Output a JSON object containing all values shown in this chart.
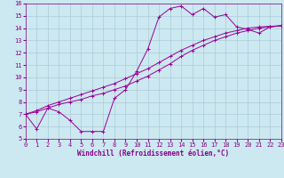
{
  "xlabel": "Windchill (Refroidissement éolien,°C)",
  "bg_color": "#cce8f0",
  "line_color": "#990099",
  "grid_color": "#aaccd8",
  "xmin": 0,
  "xmax": 23,
  "ymin": 5,
  "ymax": 16,
  "xticks": [
    0,
    1,
    2,
    3,
    4,
    5,
    6,
    7,
    8,
    9,
    10,
    11,
    12,
    13,
    14,
    15,
    16,
    17,
    18,
    19,
    20,
    21,
    22,
    23
  ],
  "yticks": [
    5,
    6,
    7,
    8,
    9,
    10,
    11,
    12,
    13,
    14,
    15,
    16
  ],
  "line1_x": [
    0,
    1,
    2,
    3,
    4,
    5,
    6,
    7,
    8,
    9,
    10,
    11,
    12,
    13,
    14,
    15,
    16,
    17,
    18,
    19,
    20,
    21,
    22,
    23
  ],
  "line1_y": [
    7.0,
    5.8,
    7.5,
    7.2,
    6.5,
    5.6,
    5.6,
    5.6,
    8.3,
    9.0,
    10.5,
    12.3,
    14.9,
    15.6,
    15.8,
    15.1,
    15.6,
    14.9,
    15.1,
    14.1,
    13.9,
    13.6,
    14.1,
    14.2
  ],
  "line2_x": [
    0,
    1,
    2,
    3,
    4,
    5,
    6,
    7,
    8,
    9,
    10,
    11,
    12,
    13,
    14,
    15,
    16,
    17,
    18,
    19,
    20,
    21,
    22,
    23
  ],
  "line2_y": [
    7.0,
    7.2,
    7.5,
    7.8,
    8.0,
    8.2,
    8.5,
    8.7,
    9.0,
    9.3,
    9.7,
    10.1,
    10.6,
    11.1,
    11.7,
    12.2,
    12.6,
    13.0,
    13.3,
    13.6,
    13.8,
    14.0,
    14.1,
    14.2
  ],
  "line3_x": [
    0,
    1,
    2,
    3,
    4,
    5,
    6,
    7,
    8,
    9,
    10,
    11,
    12,
    13,
    14,
    15,
    16,
    17,
    18,
    19,
    20,
    21,
    22,
    23
  ],
  "line3_y": [
    7.0,
    7.3,
    7.7,
    8.0,
    8.3,
    8.6,
    8.9,
    9.2,
    9.5,
    9.9,
    10.3,
    10.7,
    11.2,
    11.7,
    12.2,
    12.6,
    13.0,
    13.3,
    13.6,
    13.8,
    14.0,
    14.1,
    14.15,
    14.2
  ],
  "font_color": "#880088",
  "tick_fontsize": 5.0,
  "label_fontsize": 5.5
}
